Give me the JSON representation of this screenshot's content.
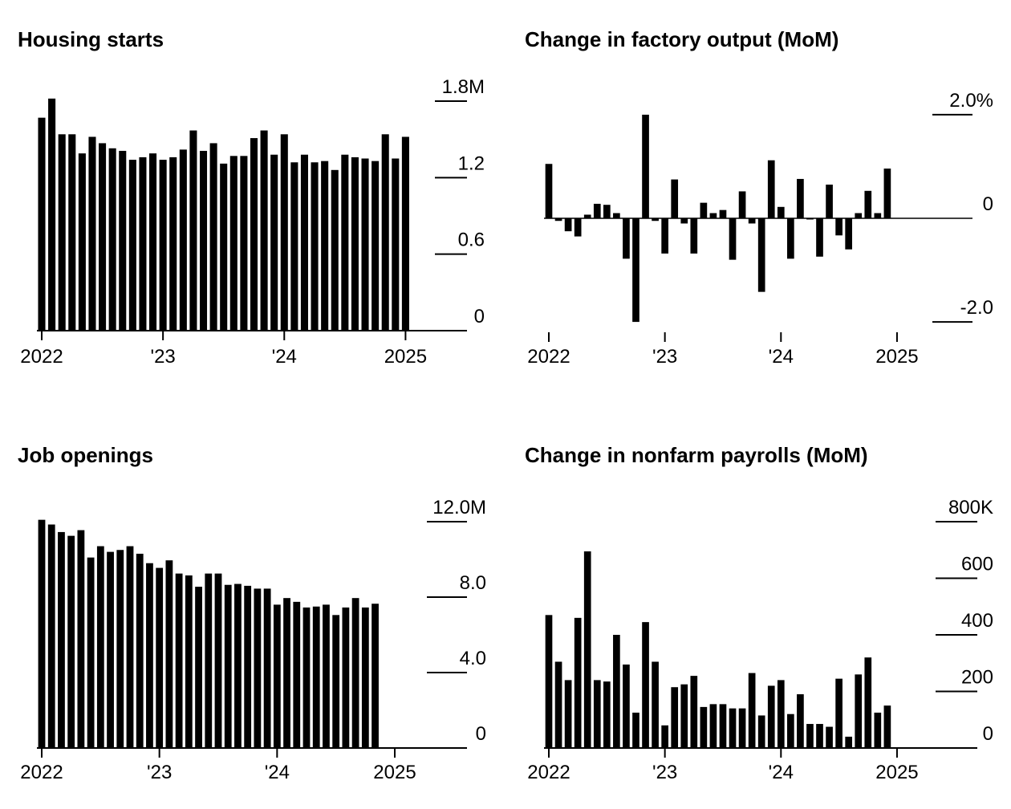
{
  "chart_data": [
    {
      "type": "bar",
      "title": "Housing starts",
      "x_tick_labels": [
        "2022",
        "'23",
        "'24",
        "2025"
      ],
      "y_tick_labels": [
        "1.8M",
        "1.2",
        "0.6",
        "0"
      ],
      "y_ticks": [
        1.8,
        1.2,
        0.6,
        0
      ],
      "ylim": [
        0,
        1.8
      ],
      "unit": "millions of units",
      "x": [
        "2022-01",
        "2022-02",
        "2022-03",
        "2022-04",
        "2022-05",
        "2022-06",
        "2022-07",
        "2022-08",
        "2022-09",
        "2022-10",
        "2022-11",
        "2022-12",
        "2023-01",
        "2023-02",
        "2023-03",
        "2023-04",
        "2023-05",
        "2023-06",
        "2023-07",
        "2023-08",
        "2023-09",
        "2023-10",
        "2023-11",
        "2023-12",
        "2024-01",
        "2024-02",
        "2024-03",
        "2024-04",
        "2024-05",
        "2024-06",
        "2024-07",
        "2024-08",
        "2024-09",
        "2024-10",
        "2024-11",
        "2024-12",
        "2025-01",
        "2025-02"
      ],
      "values": [
        1.67,
        1.82,
        1.54,
        1.54,
        1.39,
        1.52,
        1.47,
        1.43,
        1.41,
        1.34,
        1.36,
        1.39,
        1.34,
        1.36,
        1.42,
        1.57,
        1.41,
        1.47,
        1.31,
        1.37,
        1.37,
        1.51,
        1.57,
        1.38,
        1.54,
        1.32,
        1.38,
        1.32,
        1.33,
        1.26,
        1.38,
        1.36,
        1.35,
        1.33,
        1.54,
        1.35,
        1.52,
        null
      ],
      "grid": false,
      "legend": "none"
    },
    {
      "type": "bar",
      "title": "Change in factory output (MoM)",
      "x_tick_labels": [
        "2022",
        "'23",
        "'24",
        "2025"
      ],
      "y_tick_labels": [
        "2.0%",
        "0",
        "-2.0"
      ],
      "y_ticks": [
        2.0,
        0,
        -2.0
      ],
      "ylim": [
        -2.2,
        2.2
      ],
      "unit": "percent",
      "x": [
        "2022-01",
        "2022-02",
        "2022-03",
        "2022-04",
        "2022-05",
        "2022-06",
        "2022-07",
        "2022-08",
        "2022-09",
        "2022-10",
        "2022-11",
        "2022-12",
        "2023-01",
        "2023-02",
        "2023-03",
        "2023-04",
        "2023-05",
        "2023-06",
        "2023-07",
        "2023-08",
        "2023-09",
        "2023-10",
        "2023-11",
        "2023-12",
        "2024-01",
        "2024-02",
        "2024-03",
        "2024-04",
        "2024-05",
        "2024-06",
        "2024-07",
        "2024-08",
        "2024-09",
        "2024-10",
        "2024-11",
        "2024-12",
        "2025-01",
        "2025-02"
      ],
      "values": [
        1.05,
        -0.05,
        -0.25,
        -0.35,
        0.07,
        0.28,
        0.26,
        0.1,
        -0.78,
        -2.0,
        2.0,
        -0.05,
        -0.68,
        0.75,
        -0.1,
        -0.68,
        0.3,
        0.1,
        0.16,
        -0.8,
        0.52,
        -0.1,
        -1.42,
        1.12,
        0.22,
        -0.78,
        0.76,
        -0.02,
        -0.74,
        0.65,
        -0.33,
        -0.6,
        0.1,
        0.53,
        0.1,
        0.96,
        null,
        null
      ],
      "grid": false,
      "legend": "none"
    },
    {
      "type": "bar",
      "title": "Job openings",
      "x_tick_labels": [
        "2022",
        "'23",
        "'24",
        "2025"
      ],
      "y_tick_labels": [
        "12.0M",
        "8.0",
        "4.0",
        "0"
      ],
      "y_ticks": [
        12.0,
        8.0,
        4.0,
        0
      ],
      "ylim": [
        0,
        12.0
      ],
      "unit": "millions",
      "x": [
        "2022-01",
        "2022-02",
        "2022-03",
        "2022-04",
        "2022-05",
        "2022-06",
        "2022-07",
        "2022-08",
        "2022-09",
        "2022-10",
        "2022-11",
        "2022-12",
        "2023-01",
        "2023-02",
        "2023-03",
        "2023-04",
        "2023-05",
        "2023-06",
        "2023-07",
        "2023-08",
        "2023-09",
        "2023-10",
        "2023-11",
        "2023-12",
        "2024-01",
        "2024-02",
        "2024-03",
        "2024-04",
        "2024-05",
        "2024-06",
        "2024-07",
        "2024-08",
        "2024-09",
        "2024-10",
        "2024-11",
        "2024-12",
        "2025-01"
      ],
      "values": [
        12.1,
        11.85,
        11.45,
        11.25,
        11.55,
        10.1,
        10.7,
        10.4,
        10.5,
        10.7,
        10.3,
        9.8,
        9.55,
        9.95,
        9.25,
        9.15,
        8.55,
        9.25,
        9.25,
        8.65,
        8.7,
        8.6,
        8.45,
        8.45,
        7.6,
        7.95,
        7.75,
        7.45,
        7.5,
        7.6,
        7.05,
        7.45,
        7.95,
        7.45,
        7.65,
        null,
        null
      ],
      "grid": false,
      "legend": "none"
    },
    {
      "type": "bar",
      "title": "Change in nonfarm payrolls (MoM)",
      "x_tick_labels": [
        "2022",
        "'23",
        "'24",
        "2025"
      ],
      "y_tick_labels": [
        "800K",
        "600",
        "400",
        "200",
        "0"
      ],
      "y_ticks": [
        800,
        600,
        400,
        200,
        0
      ],
      "ylim": [
        0,
        800
      ],
      "unit": "thousands",
      "x": [
        "2022-01",
        "2022-02",
        "2022-03",
        "2022-04",
        "2022-05",
        "2022-06",
        "2022-07",
        "2022-08",
        "2022-09",
        "2022-10",
        "2022-11",
        "2022-12",
        "2023-01",
        "2023-02",
        "2023-03",
        "2023-04",
        "2023-05",
        "2023-06",
        "2023-07",
        "2023-08",
        "2023-09",
        "2023-10",
        "2023-11",
        "2023-12",
        "2024-01",
        "2024-02",
        "2024-03",
        "2024-04",
        "2024-05",
        "2024-06",
        "2024-07",
        "2024-08",
        "2024-09",
        "2024-10",
        "2024-11",
        "2024-12",
        "2025-01",
        "2025-02"
      ],
      "values": [
        470,
        305,
        240,
        460,
        695,
        240,
        235,
        400,
        295,
        125,
        445,
        305,
        80,
        215,
        225,
        255,
        145,
        155,
        155,
        140,
        140,
        265,
        115,
        220,
        240,
        120,
        190,
        85,
        85,
        75,
        245,
        40,
        260,
        320,
        125,
        150,
        null,
        null
      ],
      "grid": false,
      "legend": "none"
    }
  ]
}
